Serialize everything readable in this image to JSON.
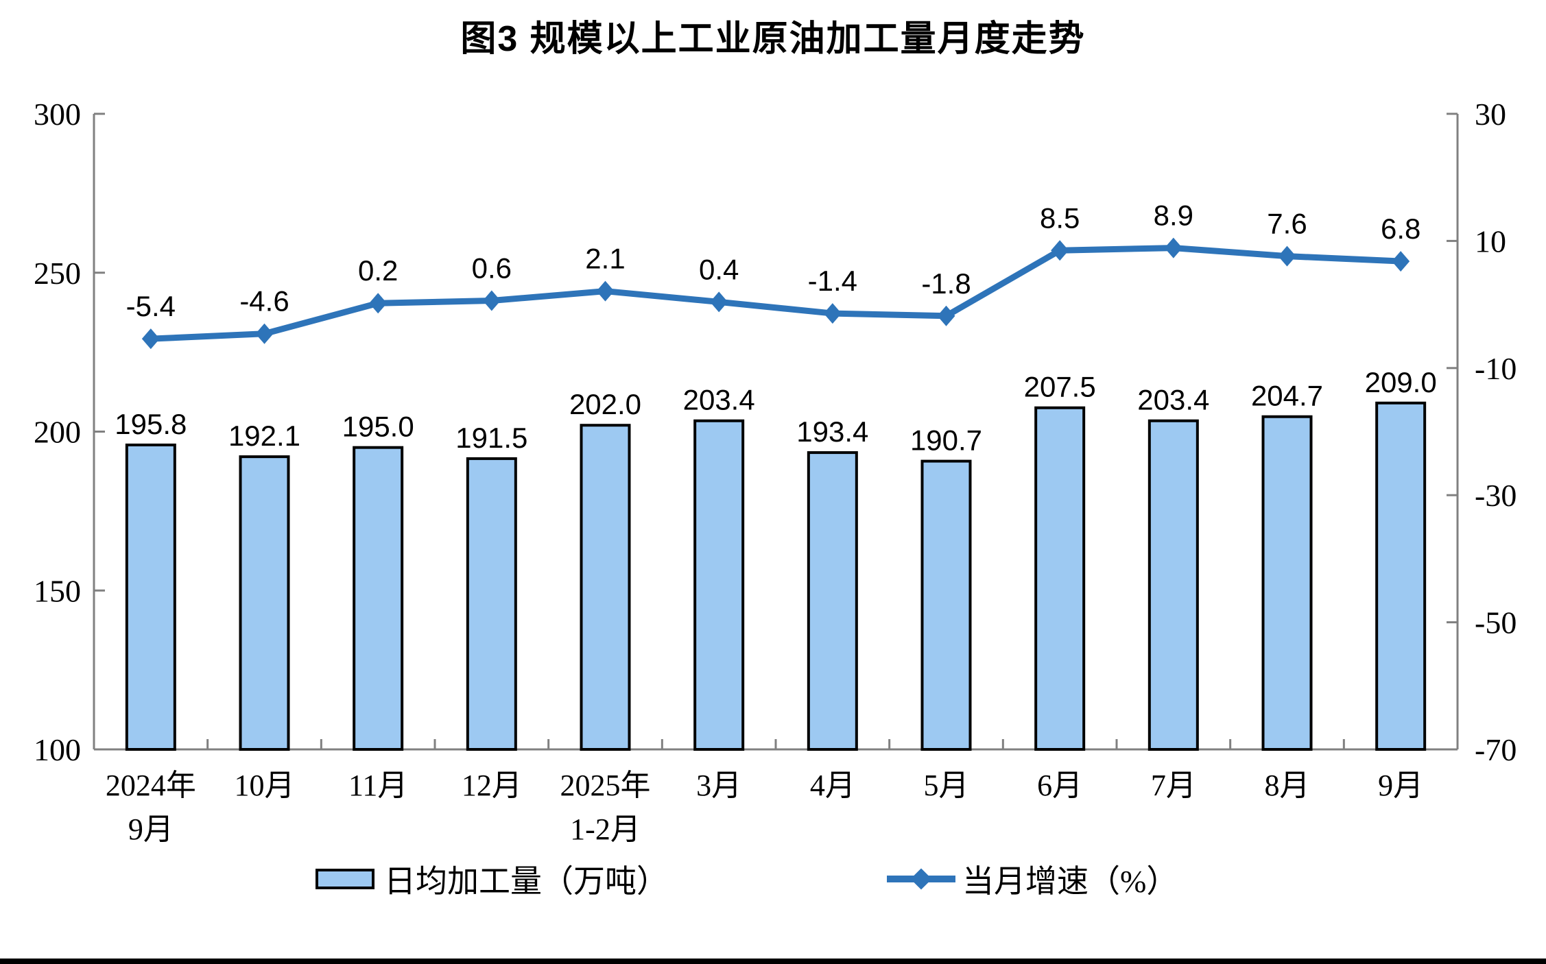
{
  "title": "图3 规模以上工业原油加工量月度走势",
  "legend": {
    "bar_label": "日均加工量（万吨）",
    "line_label": "当月增速（%）"
  },
  "chart_data": {
    "type": "bar",
    "subtype": "bar+line combo, dual axis",
    "title": "图3 规模以上工业原油加工量月度走势",
    "categories": [
      "2024年\n9月",
      "10月",
      "11月",
      "12月",
      "2025年\n1-2月",
      "3月",
      "4月",
      "5月",
      "6月",
      "7月",
      "8月",
      "9月"
    ],
    "series": [
      {
        "name": "日均加工量（万吨）",
        "type": "bar",
        "axis": "left",
        "values": [
          195.8,
          192.1,
          195.0,
          191.5,
          202.0,
          203.4,
          193.4,
          190.7,
          207.5,
          203.4,
          204.7,
          209.0
        ]
      },
      {
        "name": "当月增速（%）",
        "type": "line",
        "axis": "right",
        "values": [
          -5.4,
          -4.6,
          0.2,
          0.6,
          2.1,
          0.4,
          -1.4,
          -1.8,
          8.5,
          8.9,
          7.6,
          6.8
        ]
      }
    ],
    "left_axis": {
      "min": 100,
      "max": 300,
      "ticks": [
        300,
        250,
        200,
        150,
        100
      ]
    },
    "right_axis": {
      "min": -70,
      "max": 30,
      "ticks": [
        30,
        10,
        -10,
        -30,
        -50,
        -70
      ]
    },
    "grid": false,
    "legend_position": "bottom",
    "data_labels": true,
    "colors": {
      "bar_fill": "#9DC9F2",
      "bar_border": "#000000",
      "line": "#2E74B9",
      "axis": "#808080",
      "text": "#000000"
    }
  }
}
